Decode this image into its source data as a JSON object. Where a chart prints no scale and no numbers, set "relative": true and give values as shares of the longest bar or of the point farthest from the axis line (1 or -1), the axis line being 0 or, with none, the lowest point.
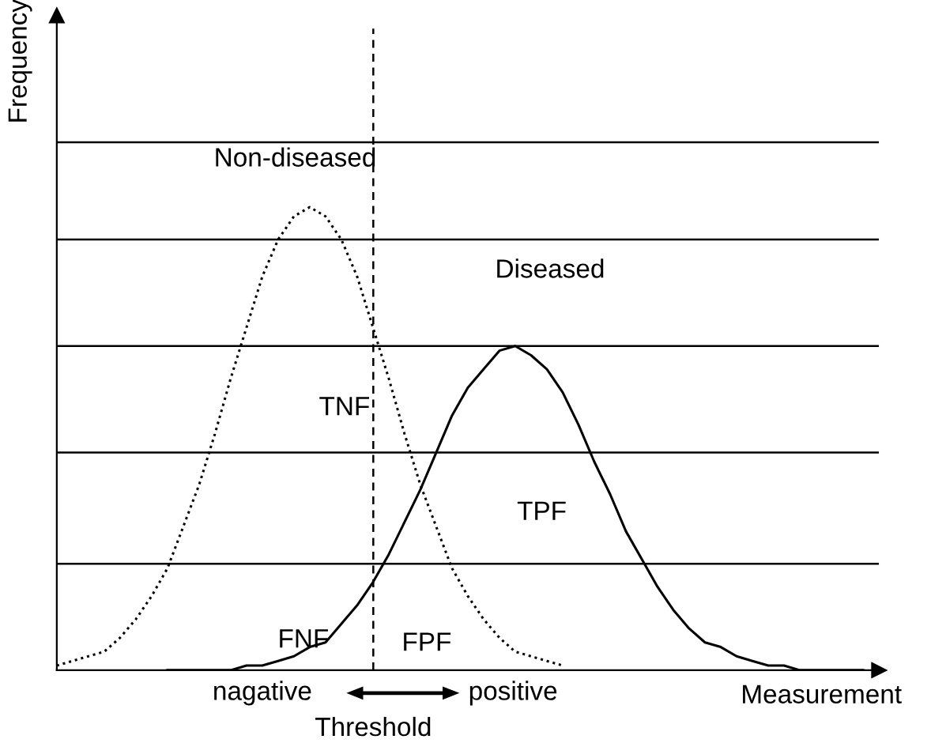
{
  "chart_data": {
    "type": "line",
    "relative": true,
    "xlabel": "Measurement",
    "ylabel": "Frequency",
    "categories": [
      null,
      null,
      null,
      null,
      null,
      null,
      null,
      null,
      null,
      null,
      null,
      null,
      null,
      null,
      null,
      null,
      null,
      null,
      null,
      null,
      null,
      null,
      null,
      null,
      null,
      null,
      null,
      null,
      null,
      null,
      null,
      null,
      null,
      null,
      null,
      null,
      null,
      null,
      null,
      null,
      null,
      null,
      null,
      null,
      null,
      null,
      null,
      null,
      null,
      null,
      null,
      null,
      null
    ],
    "series": [
      {
        "name": "Non-diseased",
        "color": "#000000",
        "line_style": "dotted",
        "values": [
          0.01,
          0.02,
          0.03,
          0.04,
          0.07,
          0.11,
          0.16,
          0.22,
          0.31,
          0.4,
          0.51,
          0.63,
          0.74,
          0.85,
          0.93,
          0.98,
          1,
          0.98,
          0.93,
          0.85,
          0.74,
          0.63,
          0.51,
          0.4,
          0.31,
          0.22,
          0.16,
          0.11,
          0.07,
          0.04,
          0.03,
          0.02,
          0.01,
          null,
          null,
          null,
          null,
          null,
          null,
          null,
          null,
          null,
          null,
          null,
          null,
          null,
          null,
          null,
          null,
          null,
          null,
          null,
          null
        ]
      },
      {
        "name": "Diseased",
        "color": "#000000",
        "line_style": "solid",
        "values": [
          null,
          null,
          null,
          null,
          null,
          null,
          null,
          0.0,
          0.0,
          0.0,
          0.0,
          0.0,
          0.01,
          0.01,
          0.02,
          0.03,
          0.05,
          0.06,
          0.1,
          0.14,
          0.19,
          0.25,
          0.32,
          0.39,
          0.47,
          0.55,
          0.61,
          0.65,
          0.69,
          0.7,
          0.68,
          0.65,
          0.6,
          0.53,
          0.45,
          0.38,
          0.3,
          0.24,
          0.18,
          0.13,
          0.09,
          0.06,
          0.05,
          0.03,
          0.02,
          0.01,
          0.01,
          0.0,
          0.0,
          0.0,
          0.0,
          0.0,
          null
        ]
      }
    ],
    "ref_lines": [
      {
        "axis": "y",
        "value": 0.23,
        "color": "#000000",
        "line_style": "solid"
      },
      {
        "axis": "y",
        "value": 0.47,
        "color": "#000000",
        "line_style": "solid"
      },
      {
        "axis": "y",
        "value": 0.7,
        "color": "#000000",
        "line_style": "solid"
      },
      {
        "axis": "y",
        "value": 0.93,
        "color": "#000000",
        "line_style": "solid"
      },
      {
        "axis": "y",
        "value": 1.14,
        "color": "#000000",
        "line_style": "solid"
      }
    ],
    "annotations": [
      "TNF",
      "TPF",
      "FNF",
      "FPF",
      "nagative",
      "positive",
      "Threshold"
    ]
  }
}
